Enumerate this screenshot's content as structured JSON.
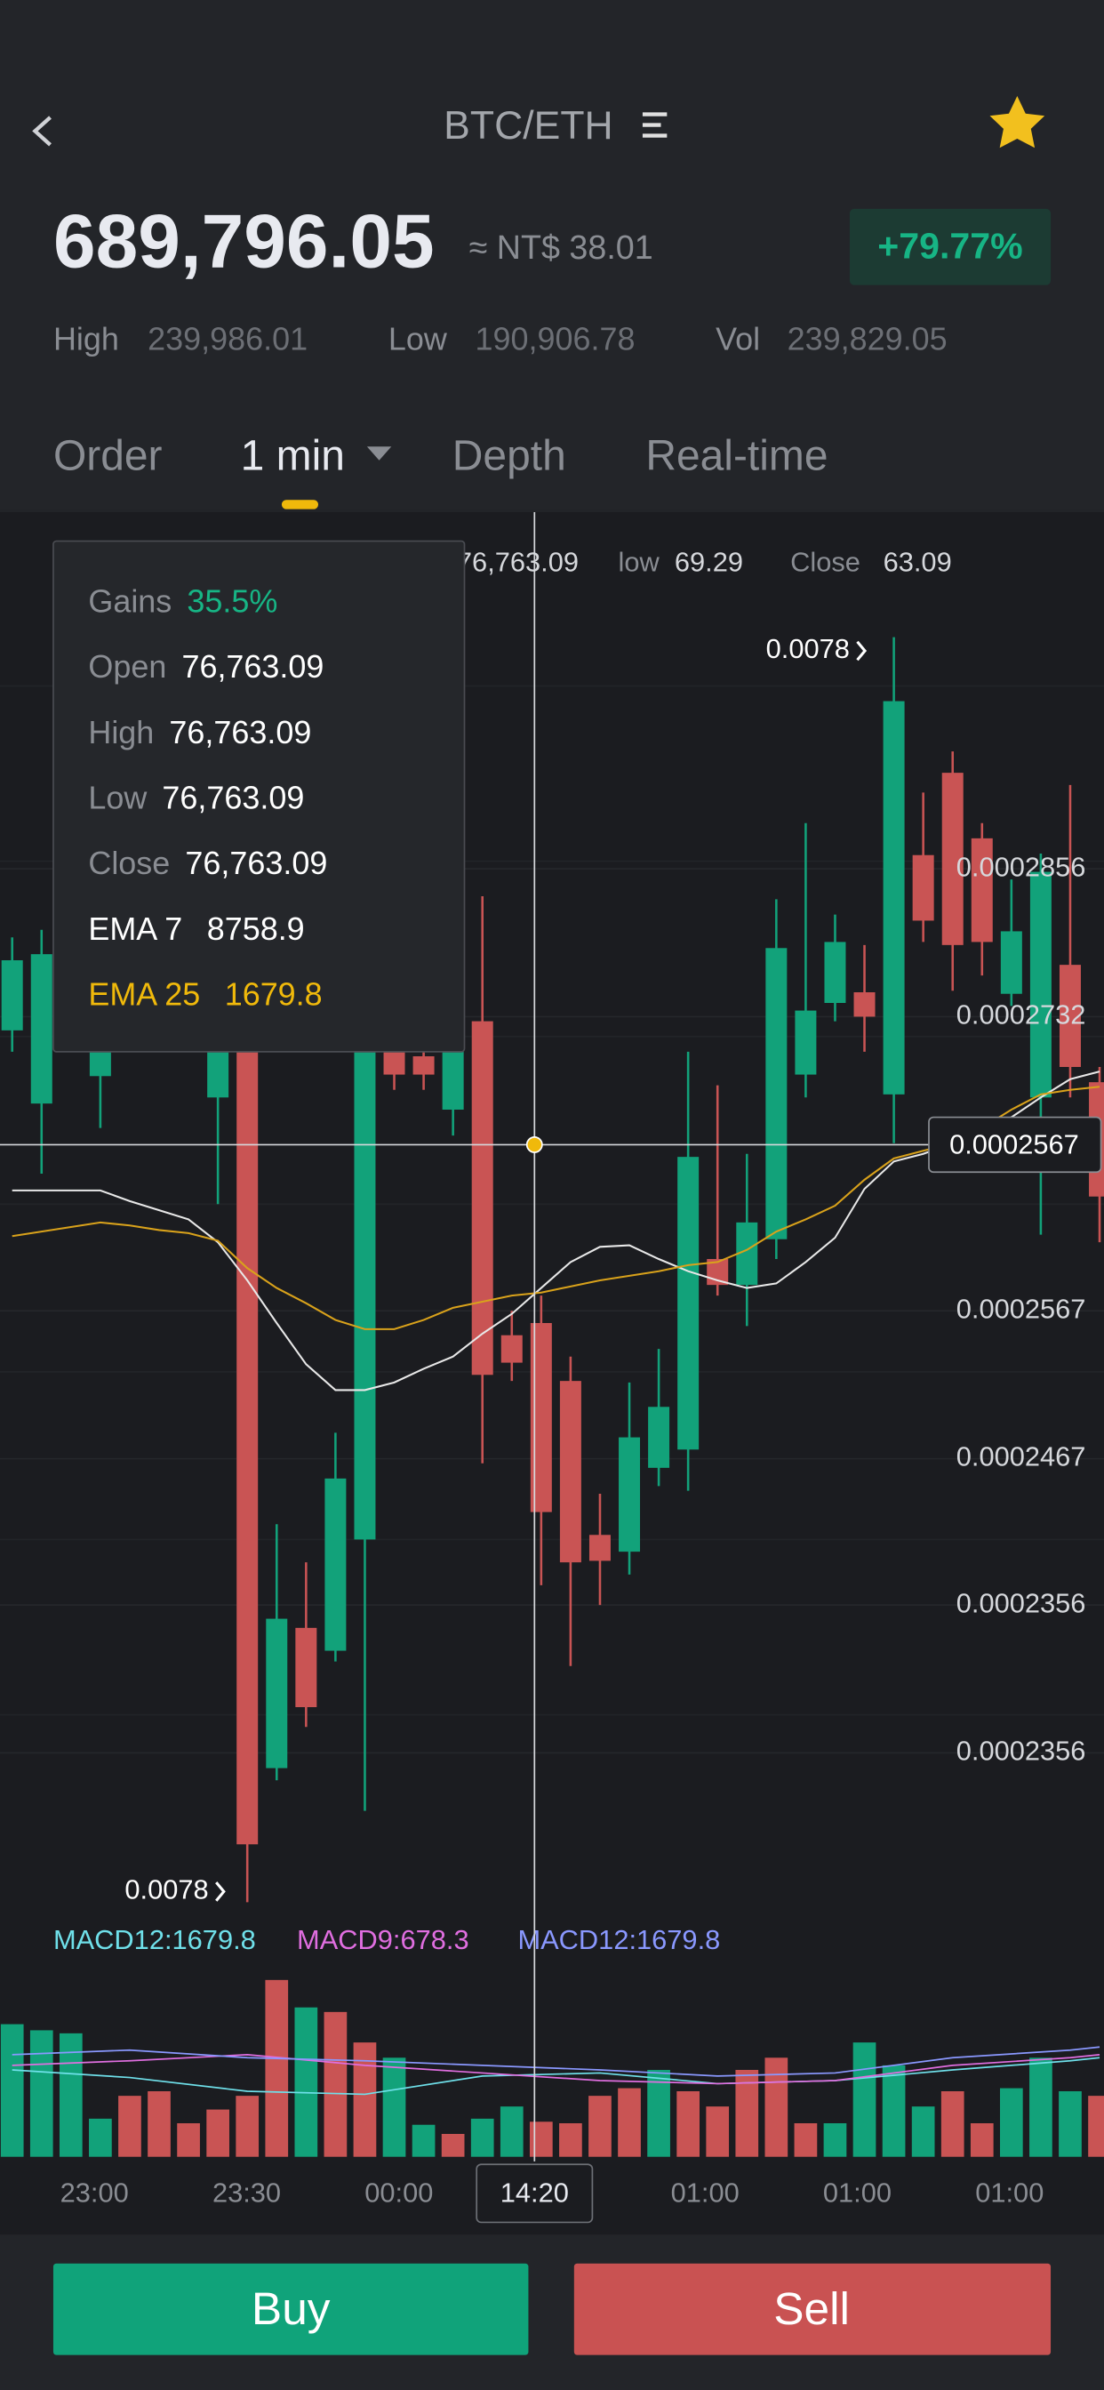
{
  "header": {
    "pair": "BTC/ETH"
  },
  "price": {
    "last": "689,796.05",
    "fiat": "≈ NT$ 38.01",
    "change": "+79.77%",
    "high_label": "High",
    "high": "239,986.01",
    "low_label": "Low",
    "low": "190,906.78",
    "vol_label": "Vol",
    "vol": "239,829.05"
  },
  "tabs": [
    "Order",
    "1 min",
    "Depth",
    "Real-time"
  ],
  "ohlc_strip": {
    "value": "76,763.09",
    "low_label": "low",
    "low": "69.29",
    "close_label": "Close",
    "close": "63.09"
  },
  "tooltip": [
    {
      "label": "Gains",
      "value": "35.5%"
    },
    {
      "label": "Open",
      "value": "76,763.09"
    },
    {
      "label": "High",
      "value": "76,763.09"
    },
    {
      "label": "Low",
      "value": "76,763.09"
    },
    {
      "label": "Close",
      "value": "76,763.09"
    },
    {
      "label": "EMA 7",
      "value": "8758.9"
    },
    {
      "label": "EMA 25",
      "value": "1679.8"
    }
  ],
  "chart_data": {
    "type": "candlestick",
    "ylim": [
      0.0002177,
      0.0003087
    ],
    "y_labels": [
      "0.0002856",
      "0.0002732",
      "0.0002567",
      "0.0002467",
      "0.0002356",
      "0.0002356"
    ],
    "up_color": "#12a27a",
    "down_color": "#c95454",
    "open": [
      0.0002751,
      0.0002703,
      null,
      0.0002721,
      null,
      null,
      null,
      0.0002707,
      0.0002737,
      0.0002267,
      0.0002359,
      0.0002344,
      0.0002417,
      0.0002737,
      0.0002734,
      0.0002699,
      0.0002757,
      0.0002551,
      0.0002559,
      0.0002521,
      0.000242,
      0.0002409,
      0.0002464,
      0.0002476,
      0.0002601,
      0.0002584,
      0.0002614,
      0.0002722,
      0.0002769,
      0.0002776,
      0.0002709,
      0.0002866,
      0.000292,
      0.0002877,
      0.0002775,
      0.0002707,
      0.0002794,
      0.0002717
    ],
    "high": [
      0.0002812,
      0.0002817,
      null,
      0.0002747,
      null,
      null,
      null,
      0.0002742,
      0.0002737,
      0.0002427,
      0.0002402,
      0.0002487,
      0.0002737,
      0.0002737,
      0.0002737,
      0.0002747,
      0.0002839,
      0.0002567,
      0.0002577,
      0.0002537,
      0.0002447,
      0.000252,
      0.0002542,
      0.0002737,
      0.0002715,
      0.000267,
      0.0002837,
      0.0002887,
      0.0002827,
      0.0002807,
      0.0003009,
      0.0002907,
      0.0002934,
      0.0002887,
      0.000285,
      0.0002867,
      0.0002912,
      0.0002727
    ],
    "low": [
      0.0002737,
      0.0002657,
      null,
      0.0002687,
      null,
      null,
      null,
      0.0002637,
      0.0002179,
      0.0002259,
      0.0002294,
      0.0002337,
      0.0002239,
      0.0002712,
      0.0002712,
      0.0002682,
      0.0002467,
      0.0002521,
      0.0002387,
      0.0002334,
      0.0002374,
      0.0002394,
      0.0002452,
      0.0002449,
      0.0002577,
      0.0002557,
      0.0002601,
      0.0002707,
      0.0002757,
      0.0002737,
      0.0002677,
      0.0002809,
      0.0002777,
      0.0002787,
      0.0002767,
      0.0002617,
      0.0002707,
      0.0002612
    ],
    "close": [
      0.0002797,
      0.0002801,
      null,
      0.0002742,
      null,
      null,
      null,
      0.0002742,
      0.0002217,
      0.0002365,
      0.0002307,
      0.0002457,
      0.0002737,
      0.0002722,
      0.0002722,
      0.0002737,
      0.0002525,
      0.0002533,
      0.0002435,
      0.0002402,
      0.0002403,
      0.0002484,
      0.0002504,
      0.0002668,
      0.0002584,
      0.0002625,
      0.0002805,
      0.0002764,
      0.0002809,
      0.000276,
      0.0002967,
      0.0002823,
      0.0002807,
      0.0002809,
      0.0002816,
      0.0002855,
      0.0002727,
      0.0002642
    ],
    "lines": [
      {
        "color": "#e8e8e8",
        "values": [
          0.0002646,
          0.0002646,
          0.0002646,
          0.0002646,
          0.0002639,
          0.0002633,
          0.0002627,
          0.0002612,
          0.0002587,
          0.0002559,
          0.0002532,
          0.0002515,
          0.0002515,
          0.000252,
          0.0002529,
          0.0002537,
          0.0002552,
          0.0002565,
          0.0002582,
          0.0002599,
          0.0002609,
          0.000261,
          0.0002601,
          0.0002593,
          0.0002587,
          0.0002582,
          0.0002585,
          0.0002599,
          0.0002615,
          0.0002647,
          0.0002665,
          0.000267,
          0.0002677,
          0.0002685,
          0.0002694,
          0.0002707,
          0.0002719,
          0.0002724
        ]
      },
      {
        "color": "#d9a21b",
        "values": [
          0.0002616,
          0.0002619,
          0.0002622,
          0.0002625,
          0.0002623,
          0.000262,
          0.0002618,
          0.0002613,
          0.0002595,
          0.0002582,
          0.0002572,
          0.0002561,
          0.0002555,
          0.0002555,
          0.0002561,
          0.0002569,
          0.0002573,
          0.0002577,
          0.0002579,
          0.0002583,
          0.0002587,
          0.000259,
          0.0002593,
          0.0002597,
          0.0002599,
          0.0002607,
          0.0002619,
          0.0002627,
          0.0002636,
          0.0002653,
          0.0002667,
          0.0002672,
          0.0002677,
          0.0002687,
          0.0002699,
          0.0002709,
          0.0002712,
          0.0002714
        ]
      }
    ],
    "max_marker": "0.0078",
    "min_marker": "0.0078",
    "crosshair_price": "0.0002567"
  },
  "macd": {
    "labels": [
      {
        "text": "MACD12:1679.8",
        "color": "#6fe0ea"
      },
      {
        "text": "MACD9:678.3",
        "color": "#e06ee0"
      },
      {
        "text": "MACD12:1679.8",
        "color": "#8a98ff"
      }
    ],
    "hist": [
      87,
      83,
      81,
      25,
      40,
      43,
      22,
      31,
      40,
      116,
      98,
      95,
      75,
      65,
      21,
      15,
      25,
      33,
      23,
      22,
      40,
      45,
      57,
      43,
      33,
      57,
      65,
      22,
      22,
      75,
      60,
      33,
      43,
      22,
      45,
      65,
      43,
      40
    ],
    "hist_up": [
      true,
      true,
      true,
      true,
      false,
      false,
      false,
      false,
      false,
      false,
      true,
      false,
      false,
      true,
      true,
      false,
      true,
      true,
      false,
      false,
      false,
      false,
      true,
      false,
      false,
      false,
      false,
      false,
      true,
      true,
      true,
      true,
      false,
      false,
      true,
      true,
      true,
      false
    ],
    "lines": [
      {
        "color": "#6fe0ea",
        "x": [
          0,
          4,
          8,
          12,
          16,
          20,
          24,
          28,
          32,
          36,
          37
        ],
        "values": [
          57,
          52,
          43,
          41,
          53,
          55,
          48,
          50,
          57,
          63,
          65
        ]
      },
      {
        "color": "#e06ee0",
        "x": [
          0,
          4,
          8,
          12,
          16,
          20,
          24,
          28,
          32,
          36,
          37
        ],
        "values": [
          60,
          63,
          67,
          60,
          55,
          50,
          48,
          50,
          60,
          65,
          67
        ]
      },
      {
        "color": "#8a98ff",
        "x": [
          0,
          4,
          8,
          12,
          16,
          20,
          24,
          28,
          32,
          36,
          37
        ],
        "values": [
          67,
          70,
          65,
          63,
          60,
          57,
          53,
          55,
          65,
          70,
          72
        ]
      }
    ]
  },
  "time_labels": [
    "23:00",
    "23:30",
    "00:00",
    "14:20",
    "01:00",
    "01:00",
    "01:00"
  ],
  "buttons": {
    "buy": "Buy",
    "sell": "Sell"
  }
}
